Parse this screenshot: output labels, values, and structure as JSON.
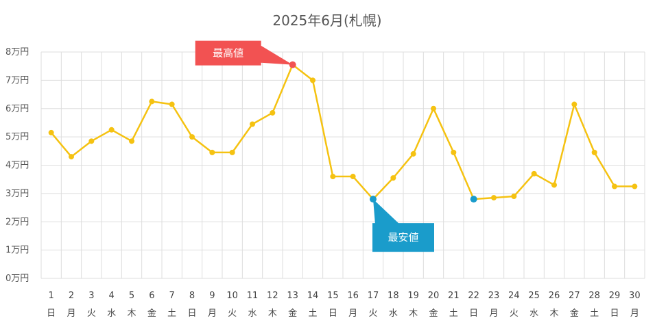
{
  "chart_data": {
    "type": "line",
    "title": "2025年6月(札幌)",
    "xlabel": "",
    "ylabel": "",
    "y_unit": "万円",
    "ylim": [
      0,
      80000
    ],
    "y_ticks": [
      0,
      10000,
      20000,
      30000,
      40000,
      50000,
      60000,
      70000,
      80000
    ],
    "y_tick_labels": [
      "0万円",
      "1万円",
      "2万円",
      "3万円",
      "4万円",
      "5万円",
      "6万円",
      "7万円",
      "8万円"
    ],
    "grid": true,
    "x": [
      1,
      2,
      3,
      4,
      5,
      6,
      7,
      8,
      9,
      10,
      11,
      12,
      13,
      14,
      15,
      16,
      17,
      18,
      19,
      20,
      21,
      22,
      23,
      24,
      25,
      26,
      27,
      28,
      29,
      30
    ],
    "weekdays": [
      "日",
      "月",
      "火",
      "水",
      "木",
      "金",
      "土",
      "日",
      "月",
      "火",
      "水",
      "木",
      "金",
      "土",
      "日",
      "月",
      "火",
      "水",
      "木",
      "金",
      "土",
      "日",
      "月",
      "火",
      "水",
      "木",
      "金",
      "土",
      "日",
      "月"
    ],
    "series": [
      {
        "values": [
          51500,
          43000,
          48500,
          52500,
          48500,
          62500,
          61500,
          50000,
          44500,
          44500,
          54500,
          58500,
          75500,
          70000,
          36000,
          36000,
          28000,
          35500,
          44000,
          60000,
          44500,
          28000,
          28500,
          29000,
          37000,
          33000,
          61500,
          44500,
          32500,
          32500
        ],
        "color": "#f5c211"
      }
    ],
    "annotations": [
      {
        "label": "最高値",
        "day": 13,
        "value": 75500,
        "color": "#f25252"
      },
      {
        "label": "最安値",
        "day": 17,
        "value": 28000,
        "color": "#1a9ccb"
      }
    ],
    "extra_markers": [
      {
        "day": 22,
        "value": 28000,
        "color": "#1a9ccb"
      }
    ]
  }
}
